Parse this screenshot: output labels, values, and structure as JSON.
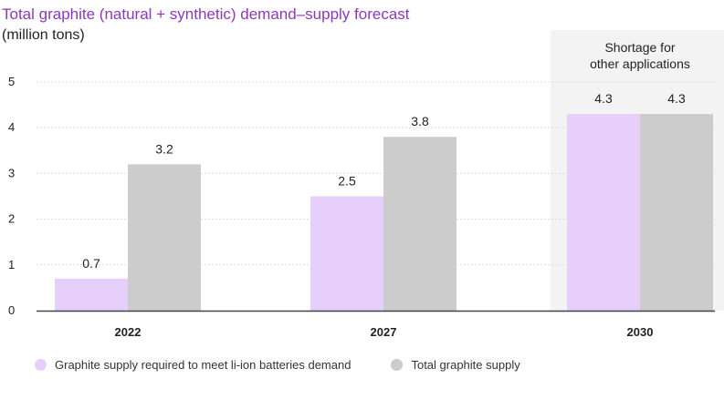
{
  "chart_data": {
    "type": "bar",
    "title": "Total graphite (natural + synthetic) demand–supply forecast",
    "ylabel": "(million tons)",
    "xlabel": "",
    "categories": [
      "2022",
      "2027",
      "2030"
    ],
    "series": [
      {
        "name": "Graphite supply required to meet li-ion batteries demand",
        "values": [
          0.7,
          2.5,
          4.3
        ],
        "labels": [
          "0.7",
          "2.5",
          "4.3"
        ],
        "color": "#e6cffa"
      },
      {
        "name": "Total graphite supply",
        "values": [
          3.2,
          3.8,
          4.3
        ],
        "labels": [
          "3.2",
          "3.8",
          "4.3"
        ],
        "color": "#cccccc"
      }
    ],
    "ylim": [
      0,
      5
    ],
    "yticks": [
      0,
      1,
      2,
      3,
      4,
      5
    ],
    "grid": true,
    "legend": "bottom",
    "annotation": {
      "category": "2030",
      "line1": "Shortage for",
      "line2": "other applications",
      "fill": "#f3f3f3"
    }
  },
  "colors": {
    "title": "#8a3ab9",
    "grid": "#dcdcdc",
    "axis": "#444444",
    "text": "#222222"
  }
}
